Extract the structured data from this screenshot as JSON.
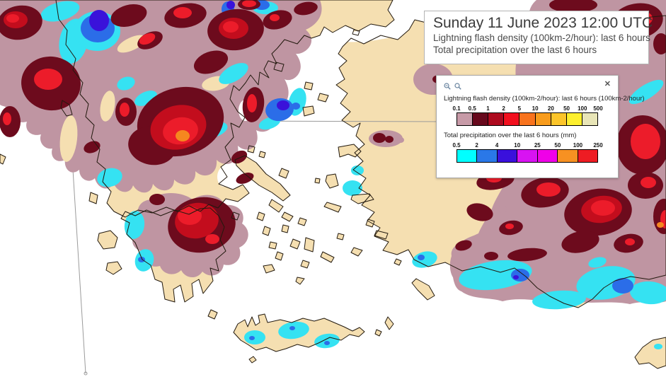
{
  "title_box": {
    "title": "Sunday 11 June 2023 12:00 UTC",
    "subtitle1": "Lightning flash density (100km-2/hour): last 6 hours",
    "subtitle2": "Total precipitation over the last 6 hours"
  },
  "legend_panel": {
    "toolbar": {
      "zoom_in_icon": "magnifier-plus",
      "zoom_out_icon": "magnifier-minus",
      "close_icon": "✕"
    },
    "lightning": {
      "label": "Lightning flash density (100km-2/hour): last 6 hours (100km-2/hour)",
      "ticks": [
        "0.1",
        "0.5",
        "1",
        "2",
        "5",
        "10",
        "20",
        "50",
        "100",
        "500"
      ],
      "colors": [
        "#c79aa7",
        "#67081c",
        "#ad0a1e",
        "#f2101e",
        "#f8731d",
        "#f89c1c",
        "#fcc52a",
        "#fdef2e",
        "#e8e5b7"
      ]
    },
    "precipitation": {
      "label": "Total precipitation over the last 6 hours (mm)",
      "ticks": [
        "0.5",
        "2",
        "4",
        "10",
        "25",
        "50",
        "100",
        "250"
      ],
      "colors": [
        "#00ffff",
        "#2a78e8",
        "#3a10dc",
        "#d813f2",
        "#f000e8",
        "#f79122",
        "#ee1c23"
      ]
    }
  },
  "map": {
    "sea_color": "#ffffff",
    "land_color": "#f5dfb1",
    "coast_color": "#22190e",
    "grid_color": "#9b9b9b",
    "overlay_colors": {
      "mauve": "#bf95a2",
      "maroon": "#6d0b1d",
      "crimson": "#c30d1d",
      "red": "#ec1c2a",
      "orange": "#f5871f",
      "cyan": "#35e2f2",
      "blue": "#2b6de8",
      "indigo": "#3a12da",
      "magenta": "#ee00e4"
    }
  }
}
